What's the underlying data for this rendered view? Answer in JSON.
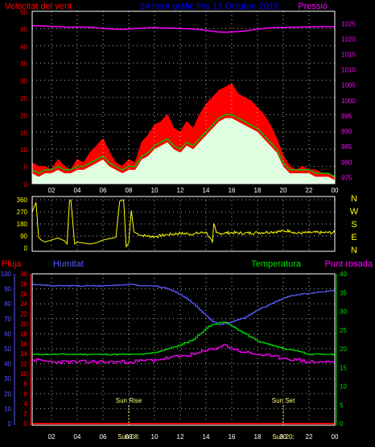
{
  "header": {
    "left_label": "Velocitat del vent",
    "center_label": "24 hora gràfic fins 13 Octubre 2019",
    "right_label": "Pressió"
  },
  "colors": {
    "background": "#000000",
    "grid": "#ffffff",
    "frame": "#ffffff",
    "wind_label": "#ff0000",
    "pressure": "#ff00ff",
    "title": "#0000ff",
    "gust": "#ff0000",
    "wind_avg": "#00c000",
    "wind_fill": "#e0ffe0",
    "direction": "#ffff00",
    "rain": "#ff0000",
    "humidity": "#5a5aff",
    "temperature": "#00e000",
    "dewpoint": "#ff00ff",
    "sun_marker": "#ffff80",
    "time_axis": "#ffffff"
  },
  "chart_data": [
    {
      "type": "line",
      "panel": "wind-pressure",
      "x": [
        "00:30",
        "01:00",
        "01:30",
        "02:00",
        "02:30",
        "03:00",
        "03:30",
        "04:00",
        "04:30",
        "05:00",
        "05:30",
        "06:00",
        "06:30",
        "07:00",
        "07:30",
        "08:00",
        "08:30",
        "09:00",
        "09:30",
        "10:00",
        "10:30",
        "11:00",
        "11:30",
        "12:00",
        "12:30",
        "13:00",
        "13:30",
        "14:00",
        "14:30",
        "15:00",
        "15:30",
        "16:00",
        "16:30",
        "17:00",
        "17:30",
        "18:00",
        "18:30",
        "19:00",
        "19:30",
        "20:00",
        "20:30",
        "21:00",
        "21:30",
        "22:00",
        "22:30",
        "23:00",
        "23:30",
        "00:00"
      ],
      "x_ticks": [
        "02",
        "04",
        "06",
        "08",
        "10",
        "12",
        "14",
        "16",
        "18",
        "20",
        "22",
        "00"
      ],
      "y_left_ticks": [
        0,
        5,
        10,
        15,
        20,
        25,
        30,
        35,
        40,
        45,
        50
      ],
      "y_left_range": [
        0,
        50
      ],
      "y_right_ticks": [
        975,
        980,
        985,
        990,
        995,
        1000,
        1005,
        1010,
        1015,
        1020,
        1025
      ],
      "y_right_range": [
        973,
        1029
      ],
      "series": [
        {
          "role": "gust",
          "values": [
            6,
            5,
            5,
            4,
            7,
            5,
            4,
            7,
            6,
            9,
            11,
            13,
            9,
            6,
            5,
            7,
            6,
            12,
            14,
            17,
            18,
            20,
            16,
            15,
            18,
            16,
            20,
            23,
            25,
            27,
            28,
            29,
            26,
            25,
            24,
            22,
            20,
            17,
            13,
            8,
            5,
            4,
            5,
            4,
            4,
            3,
            3,
            2
          ]
        },
        {
          "role": "average",
          "values": [
            3,
            2,
            3,
            3,
            4,
            3,
            3,
            4,
            4,
            5,
            6,
            7,
            5,
            4,
            3,
            4,
            4,
            7,
            8,
            10,
            11,
            12,
            10,
            9,
            11,
            10,
            12,
            14,
            16,
            18,
            19,
            19,
            18,
            17,
            16,
            15,
            13,
            11,
            9,
            5,
            3,
            3,
            3,
            3,
            2,
            2,
            2,
            1
          ]
        },
        {
          "role": "pressure",
          "values": [
            1024.3,
            1024.3,
            1024.2,
            1024.1,
            1024.0,
            1023.9,
            1023.8,
            1023.9,
            1023.9,
            1023.8,
            1023.6,
            1023.4,
            1023.3,
            1023.2,
            1023.1,
            1023.2,
            1023.4,
            1023.5,
            1023.6,
            1023.7,
            1023.6,
            1023.5,
            1023.5,
            1023.4,
            1023.3,
            1023.2,
            1023.1,
            1022.8,
            1022.5,
            1022.3,
            1022.2,
            1022.3,
            1022.4,
            1022.6,
            1022.9,
            1023.2,
            1023.4,
            1023.6,
            1023.7,
            1023.7,
            1023.8,
            1023.8,
            1023.9,
            1023.9,
            1024.0,
            1024.0,
            1024.0,
            1024.0
          ]
        }
      ]
    },
    {
      "type": "line",
      "panel": "wind-direction",
      "x_range_hours": [
        0,
        24
      ],
      "y_ticks": [
        0,
        90,
        180,
        270,
        360
      ],
      "y_range": [
        0,
        360
      ],
      "compass_labels": [
        "N",
        "W",
        "S",
        "E",
        "N"
      ],
      "points": [
        [
          0.5,
          270
        ],
        [
          0.8,
          340
        ],
        [
          1.0,
          80
        ],
        [
          1.2,
          60
        ],
        [
          1.5,
          45
        ],
        [
          2.0,
          60
        ],
        [
          2.5,
          75
        ],
        [
          3.0,
          55
        ],
        [
          3.2,
          30
        ],
        [
          3.4,
          350
        ],
        [
          3.5,
          360
        ],
        [
          3.6,
          250
        ],
        [
          3.8,
          30
        ],
        [
          4.0,
          45
        ],
        [
          5.0,
          30
        ],
        [
          5.5,
          40
        ],
        [
          6.0,
          60
        ],
        [
          6.5,
          70
        ],
        [
          7.0,
          80
        ],
        [
          7.3,
          350
        ],
        [
          7.6,
          360
        ],
        [
          7.8,
          10
        ],
        [
          8.0,
          40
        ],
        [
          8.2,
          280
        ],
        [
          8.4,
          120
        ],
        [
          8.6,
          110
        ],
        [
          9.0,
          95
        ],
        [
          10.0,
          85
        ],
        [
          11.0,
          100
        ],
        [
          12.0,
          110
        ],
        [
          13.0,
          105
        ],
        [
          14.0,
          120
        ],
        [
          14.5,
          40
        ],
        [
          14.6,
          180
        ],
        [
          14.8,
          115
        ],
        [
          15.0,
          110
        ],
        [
          16.0,
          115
        ],
        [
          17.0,
          110
        ],
        [
          18.0,
          115
        ],
        [
          19.0,
          120
        ],
        [
          20.0,
          125
        ],
        [
          20.5,
          130
        ],
        [
          21.0,
          110
        ],
        [
          22.0,
          115
        ],
        [
          23.0,
          115
        ],
        [
          24.0,
          115
        ]
      ]
    },
    {
      "type": "line",
      "panel": "rain-humidity-temperature",
      "x_range_hours": [
        0,
        24
      ],
      "left_label_rain": "Pluja",
      "left_label_humidity": "Humitat",
      "right_label_temperature": "Temperatura",
      "right_label_dewpoint": "Punt rosada",
      "y_humidity_ticks": [
        0,
        10,
        20,
        30,
        40,
        50,
        60,
        70,
        80,
        90,
        100
      ],
      "y_rain_ticks": [
        0,
        2,
        4,
        6,
        8,
        10,
        12,
        14,
        16,
        18,
        20,
        22,
        24,
        26,
        28,
        30
      ],
      "y_temperature_ticks": [
        0,
        5,
        10,
        15,
        20,
        25,
        30,
        35,
        40
      ],
      "y_temperature_range": [
        0,
        40
      ],
      "series": [
        {
          "role": "humidity",
          "x": [
            0.5,
            2,
            4,
            5,
            6,
            8,
            9,
            10,
            11,
            12,
            13,
            14,
            14.5,
            15,
            15.5,
            16,
            17,
            18,
            19,
            20,
            21,
            22,
            23,
            24
          ],
          "values": [
            93,
            92,
            92,
            92,
            92,
            93,
            92,
            92,
            90,
            86,
            80,
            72,
            68,
            66,
            67,
            68,
            71,
            76,
            80,
            84,
            86,
            87,
            88,
            89
          ]
        },
        {
          "role": "rain",
          "x": [
            0.5,
            24
          ],
          "values": [
            0,
            0
          ]
        },
        {
          "role": "temperature",
          "x": [
            0.5,
            2,
            4,
            6,
            8,
            9,
            10,
            11,
            12,
            13,
            14,
            14.5,
            15,
            15.5,
            16,
            17,
            18,
            19,
            20,
            21,
            22,
            23,
            24
          ],
          "values": [
            18.5,
            18.5,
            18.5,
            18.5,
            18.5,
            18.5,
            19,
            20,
            21,
            22.5,
            25.5,
            26.5,
            27,
            27,
            26,
            24,
            22,
            21,
            20,
            19.5,
            18.5,
            18.5,
            18.5
          ]
        },
        {
          "role": "dewpoint",
          "x": [
            0.5,
            2,
            4,
            6,
            8,
            10,
            12,
            13,
            14,
            15,
            15.5,
            16,
            17,
            18,
            19,
            20,
            21,
            22,
            23,
            24
          ],
          "values": [
            17,
            16.5,
            16.5,
            16.5,
            16.5,
            17,
            18,
            18.5,
            19.5,
            20.5,
            21,
            20,
            19,
            18.5,
            18,
            17.5,
            17,
            16.5,
            16.5,
            16.5
          ]
        }
      ],
      "x_ticks": [
        "02",
        "04",
        "06",
        "08",
        "10",
        "12",
        "14",
        "16",
        "18",
        "20",
        "22",
        "00"
      ],
      "sun_rise_label": "Sun Rise",
      "sun_set_label": "Sun Set",
      "sun_rise_hour": 8,
      "sun_set_hour": 20,
      "sun_rise_time": "Sun 08:",
      "sun_set_time": "Sun 20:"
    }
  ]
}
